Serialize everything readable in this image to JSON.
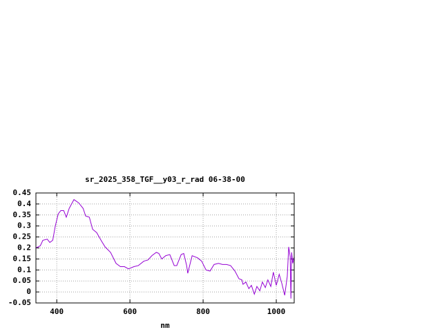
{
  "chart_data": {
    "type": "line",
    "title": "sr_2025_358_TGF__y03_r_rad 06-38-00",
    "x_label": "nm",
    "grid": true,
    "xlim": [
      343,
      1049
    ],
    "ylim": [
      -0.05,
      0.45
    ],
    "xticks": [
      400,
      600,
      800,
      1000
    ],
    "yticks": [
      0.45,
      0.4,
      0.35,
      0.3,
      0.25,
      0.2,
      0.15,
      0.1,
      0.05,
      0,
      -0.05
    ],
    "x": [
      343,
      355,
      362,
      374,
      381,
      389,
      396,
      404,
      411,
      419,
      426,
      434,
      447,
      460,
      472,
      479,
      489,
      498,
      509,
      521,
      532,
      547,
      562,
      574,
      585,
      596,
      611,
      623,
      638,
      649,
      660,
      672,
      679,
      687,
      698,
      709,
      721,
      728,
      740,
      747,
      755,
      758,
      770,
      785,
      796,
      808,
      819,
      830,
      842,
      853,
      864,
      875,
      887,
      898,
      906,
      909,
      917,
      925,
      932,
      940,
      947,
      955,
      962,
      970,
      977,
      985,
      992,
      1000,
      1008,
      1015,
      1023,
      1030,
      1034,
      1038,
      1040,
      1042,
      1045,
      1049
    ],
    "series": [
      {
        "name": null,
        "color": "#9400d3",
        "values": [
          0.2,
          0.21,
          0.235,
          0.24,
          0.225,
          0.235,
          0.3,
          0.355,
          0.37,
          0.37,
          0.34,
          0.38,
          0.42,
          0.405,
          0.38,
          0.345,
          0.34,
          0.285,
          0.27,
          0.235,
          0.205,
          0.18,
          0.13,
          0.115,
          0.115,
          0.105,
          0.115,
          0.12,
          0.14,
          0.145,
          0.165,
          0.18,
          0.175,
          0.15,
          0.165,
          0.17,
          0.12,
          0.12,
          0.17,
          0.175,
          0.12,
          0.085,
          0.165,
          0.155,
          0.14,
          0.1,
          0.095,
          0.125,
          0.13,
          0.125,
          0.125,
          0.12,
          0.095,
          0.06,
          0.055,
          0.035,
          0.045,
          0.015,
          0.03,
          -0.01,
          0.025,
          0.005,
          0.045,
          0.02,
          0.055,
          0.025,
          0.09,
          0.03,
          0.08,
          0.04,
          -0.015,
          0.07,
          0.205,
          0.16,
          -0.03,
          0.18,
          0.13,
          0.16
        ]
      }
    ]
  }
}
